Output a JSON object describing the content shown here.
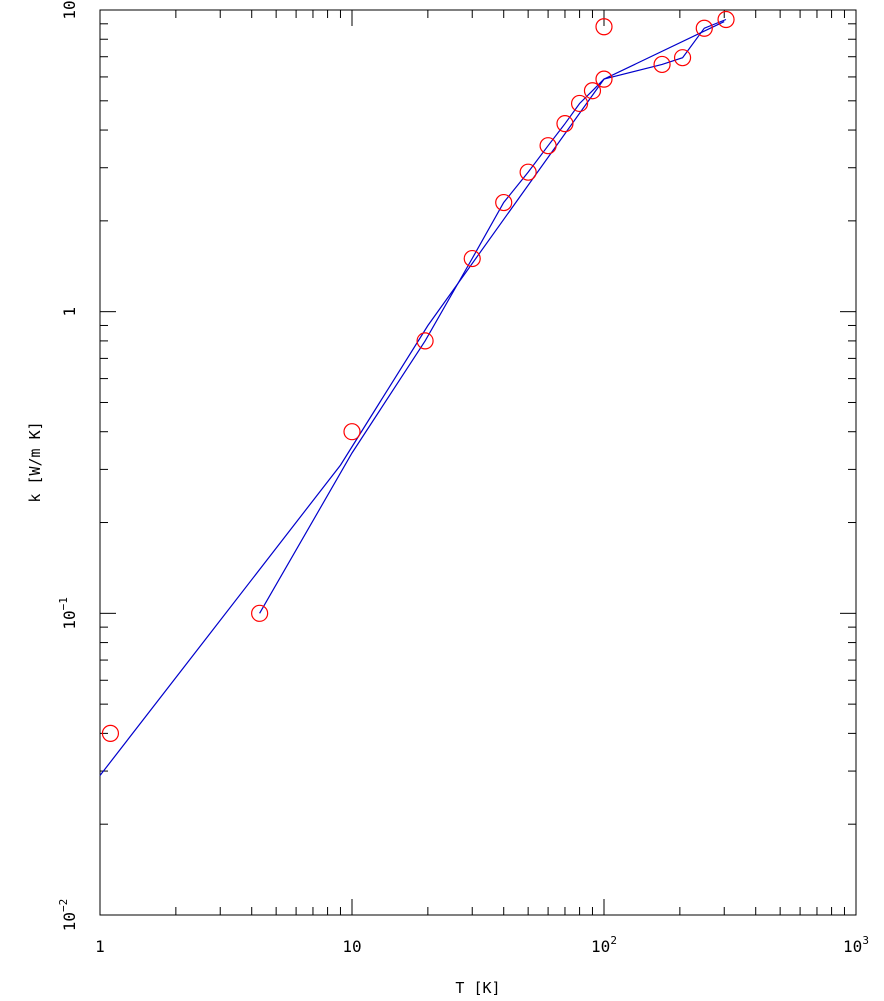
{
  "chart_data": {
    "type": "scatter",
    "xlabel": "T [K]",
    "ylabel": "k [W/m K]",
    "x_scale": "log",
    "y_scale": "log",
    "xlim": [
      1,
      1000
    ],
    "ylim": [
      0.01,
      10
    ],
    "grid": false,
    "x_ticks": [
      {
        "value": 1,
        "base": "1",
        "exp": ""
      },
      {
        "value": 10,
        "base": "10",
        "exp": ""
      },
      {
        "value": 100,
        "base": "10",
        "exp": "2"
      },
      {
        "value": 1000,
        "base": "10",
        "exp": "3"
      }
    ],
    "y_ticks": [
      {
        "value": 0.01,
        "base": "10",
        "exp": "−2"
      },
      {
        "value": 0.1,
        "base": "10",
        "exp": "−1"
      },
      {
        "value": 1,
        "base": "1",
        "exp": ""
      },
      {
        "value": 10,
        "base": "10",
        "exp": ""
      }
    ],
    "marker_color": "#ff0000",
    "line_color": "#0000cc",
    "points": {
      "x": [
        1.1,
        4.3,
        10.0,
        19.5,
        30.0,
        40.0,
        50.0,
        60.0,
        70.0,
        80.0,
        90.0,
        100.0,
        100.0,
        170.0,
        205.0,
        250.0,
        305.0
      ],
      "y": [
        0.04,
        0.1,
        0.4,
        0.8,
        1.5,
        2.3,
        2.9,
        3.55,
        4.2,
        4.9,
        5.4,
        5.9,
        8.8,
        6.6,
        6.95,
        8.7,
        9.3
      ]
    },
    "lines": [
      {
        "x": [
          1.0,
          9.0,
          20.0,
          100.0,
          300.0
        ],
        "y": [
          0.029,
          0.31,
          0.9,
          5.9,
          9.15
        ]
      },
      {
        "x": [
          4.3,
          10.0,
          19.5,
          30.0,
          40.0,
          50.0,
          60.0,
          70.0,
          80.0,
          90.0,
          100.0,
          170.0,
          205.0,
          250.0,
          305.0
        ],
        "y": [
          0.1,
          0.34,
          0.8,
          1.5,
          2.3,
          2.9,
          3.55,
          4.2,
          4.9,
          5.4,
          5.9,
          6.6,
          6.95,
          8.7,
          9.3
        ]
      }
    ]
  }
}
